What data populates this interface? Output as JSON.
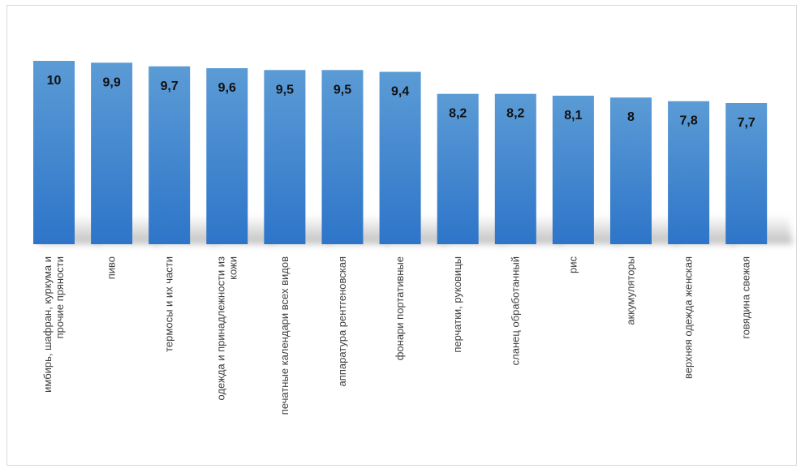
{
  "chart_data": {
    "type": "bar",
    "categories": [
      [
        "имбирь, шафран, куркума и",
        "прочие пряности"
      ],
      [
        "пиво"
      ],
      [
        "термосы и их части"
      ],
      [
        "одежда и принадлежности из",
        "кожи"
      ],
      [
        "печатные календари всех видов"
      ],
      [
        "аппаратура рентгеновская"
      ],
      [
        "фонари портативные"
      ],
      [
        "перчатки, руковицы"
      ],
      [
        "сланец обработанный"
      ],
      [
        "рис"
      ],
      [
        "аккумуляторы"
      ],
      [
        "верхняя одежда женская"
      ],
      [
        "говядина свежая"
      ]
    ],
    "values": [
      10,
      9.9,
      9.7,
      9.6,
      9.5,
      9.5,
      9.4,
      8.2,
      8.2,
      8.1,
      8,
      7.8,
      7.7
    ],
    "value_labels": [
      "10",
      "9,9",
      "9,7",
      "9,6",
      "9,5",
      "9,5",
      "9,4",
      "8,2",
      "8,2",
      "8,1",
      "8",
      "7,8",
      "7,7"
    ],
    "title": "",
    "xlabel": "",
    "ylabel": "",
    "ylim": [
      0,
      10
    ],
    "grid": false,
    "legend": "none",
    "bar_color_top": "#5b9bd5",
    "bar_color_bottom": "#2e75c9"
  }
}
